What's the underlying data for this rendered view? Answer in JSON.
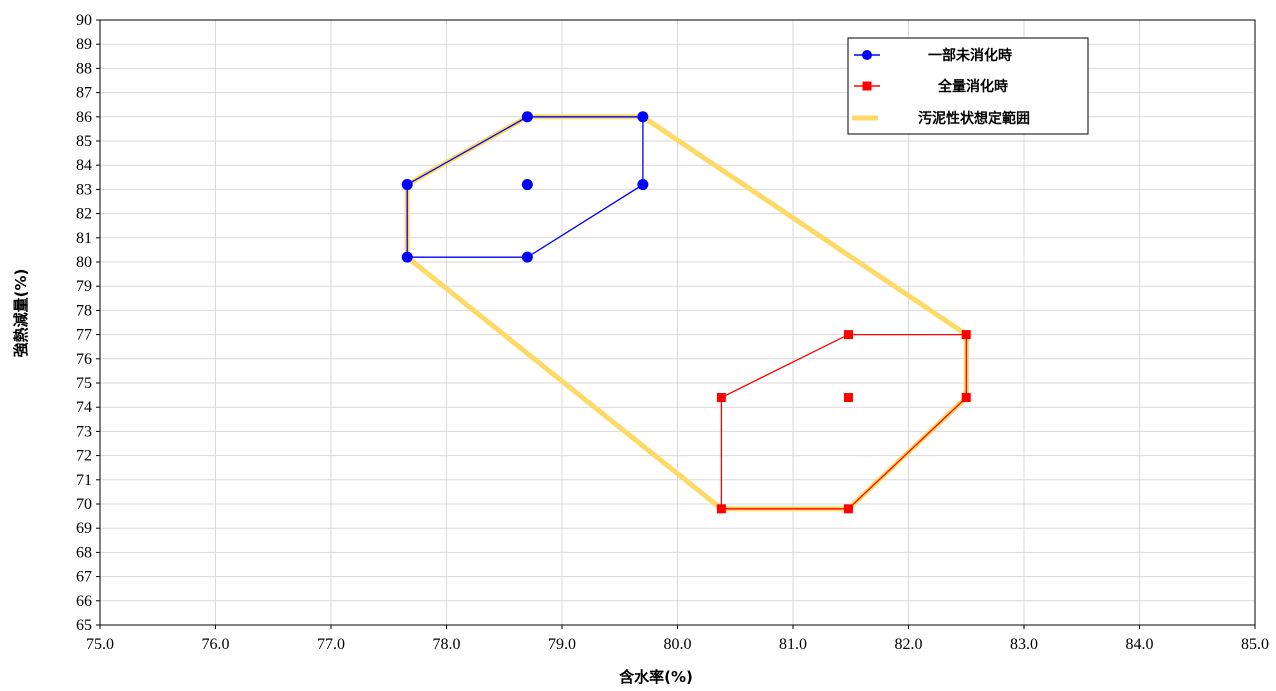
{
  "chart_data": {
    "type": "scatter",
    "title": "",
    "xlabel": "含水率(%)",
    "ylabel": "強熱減量(%)",
    "xlim": [
      75.0,
      85.0
    ],
    "ylim": [
      65,
      90
    ],
    "xticks": [
      "75.0",
      "76.0",
      "77.0",
      "78.0",
      "79.0",
      "80.0",
      "81.0",
      "82.0",
      "83.0",
      "84.0",
      "85.0"
    ],
    "yticks": [
      "65",
      "66",
      "67",
      "68",
      "69",
      "70",
      "71",
      "72",
      "73",
      "74",
      "75",
      "76",
      "77",
      "78",
      "79",
      "80",
      "81",
      "82",
      "83",
      "84",
      "85",
      "86",
      "87",
      "88",
      "89",
      "90"
    ],
    "grid": true,
    "legend_position": "top-right",
    "series": [
      {
        "name": "一部未消化時",
        "color": "#0000ff",
        "marker": "circle",
        "points": [
          [
            77.66,
            80.2
          ],
          [
            78.7,
            80.2
          ],
          [
            79.7,
            83.2
          ],
          [
            79.7,
            86.0
          ],
          [
            78.7,
            86.0
          ],
          [
            77.66,
            83.2
          ],
          [
            78.7,
            83.2
          ]
        ],
        "outline": [
          [
            77.66,
            80.2
          ],
          [
            78.7,
            80.2
          ],
          [
            79.7,
            83.2
          ],
          [
            79.7,
            86.0
          ],
          [
            78.7,
            86.0
          ],
          [
            77.66,
            83.2
          ],
          [
            77.66,
            80.2
          ]
        ]
      },
      {
        "name": "全量消化時",
        "color": "#ff0000",
        "marker": "square",
        "points": [
          [
            80.38,
            69.8
          ],
          [
            81.48,
            69.8
          ],
          [
            82.5,
            74.4
          ],
          [
            82.5,
            77.0
          ],
          [
            81.48,
            77.0
          ],
          [
            80.38,
            74.4
          ],
          [
            81.48,
            74.4
          ]
        ],
        "outline": [
          [
            80.38,
            69.8
          ],
          [
            81.48,
            69.8
          ],
          [
            82.5,
            74.4
          ],
          [
            82.5,
            77.0
          ],
          [
            81.48,
            77.0
          ],
          [
            80.38,
            74.4
          ],
          [
            80.38,
            69.8
          ]
        ]
      },
      {
        "name": "汚泥性状想定範囲",
        "color": "#ffd966",
        "marker": "none",
        "outline": [
          [
            77.66,
            80.2
          ],
          [
            77.66,
            83.2
          ],
          [
            78.7,
            86.0
          ],
          [
            79.7,
            86.0
          ],
          [
            82.5,
            77.0
          ],
          [
            82.5,
            74.4
          ],
          [
            81.48,
            69.8
          ],
          [
            80.38,
            69.8
          ],
          [
            77.66,
            80.2
          ]
        ]
      }
    ]
  }
}
